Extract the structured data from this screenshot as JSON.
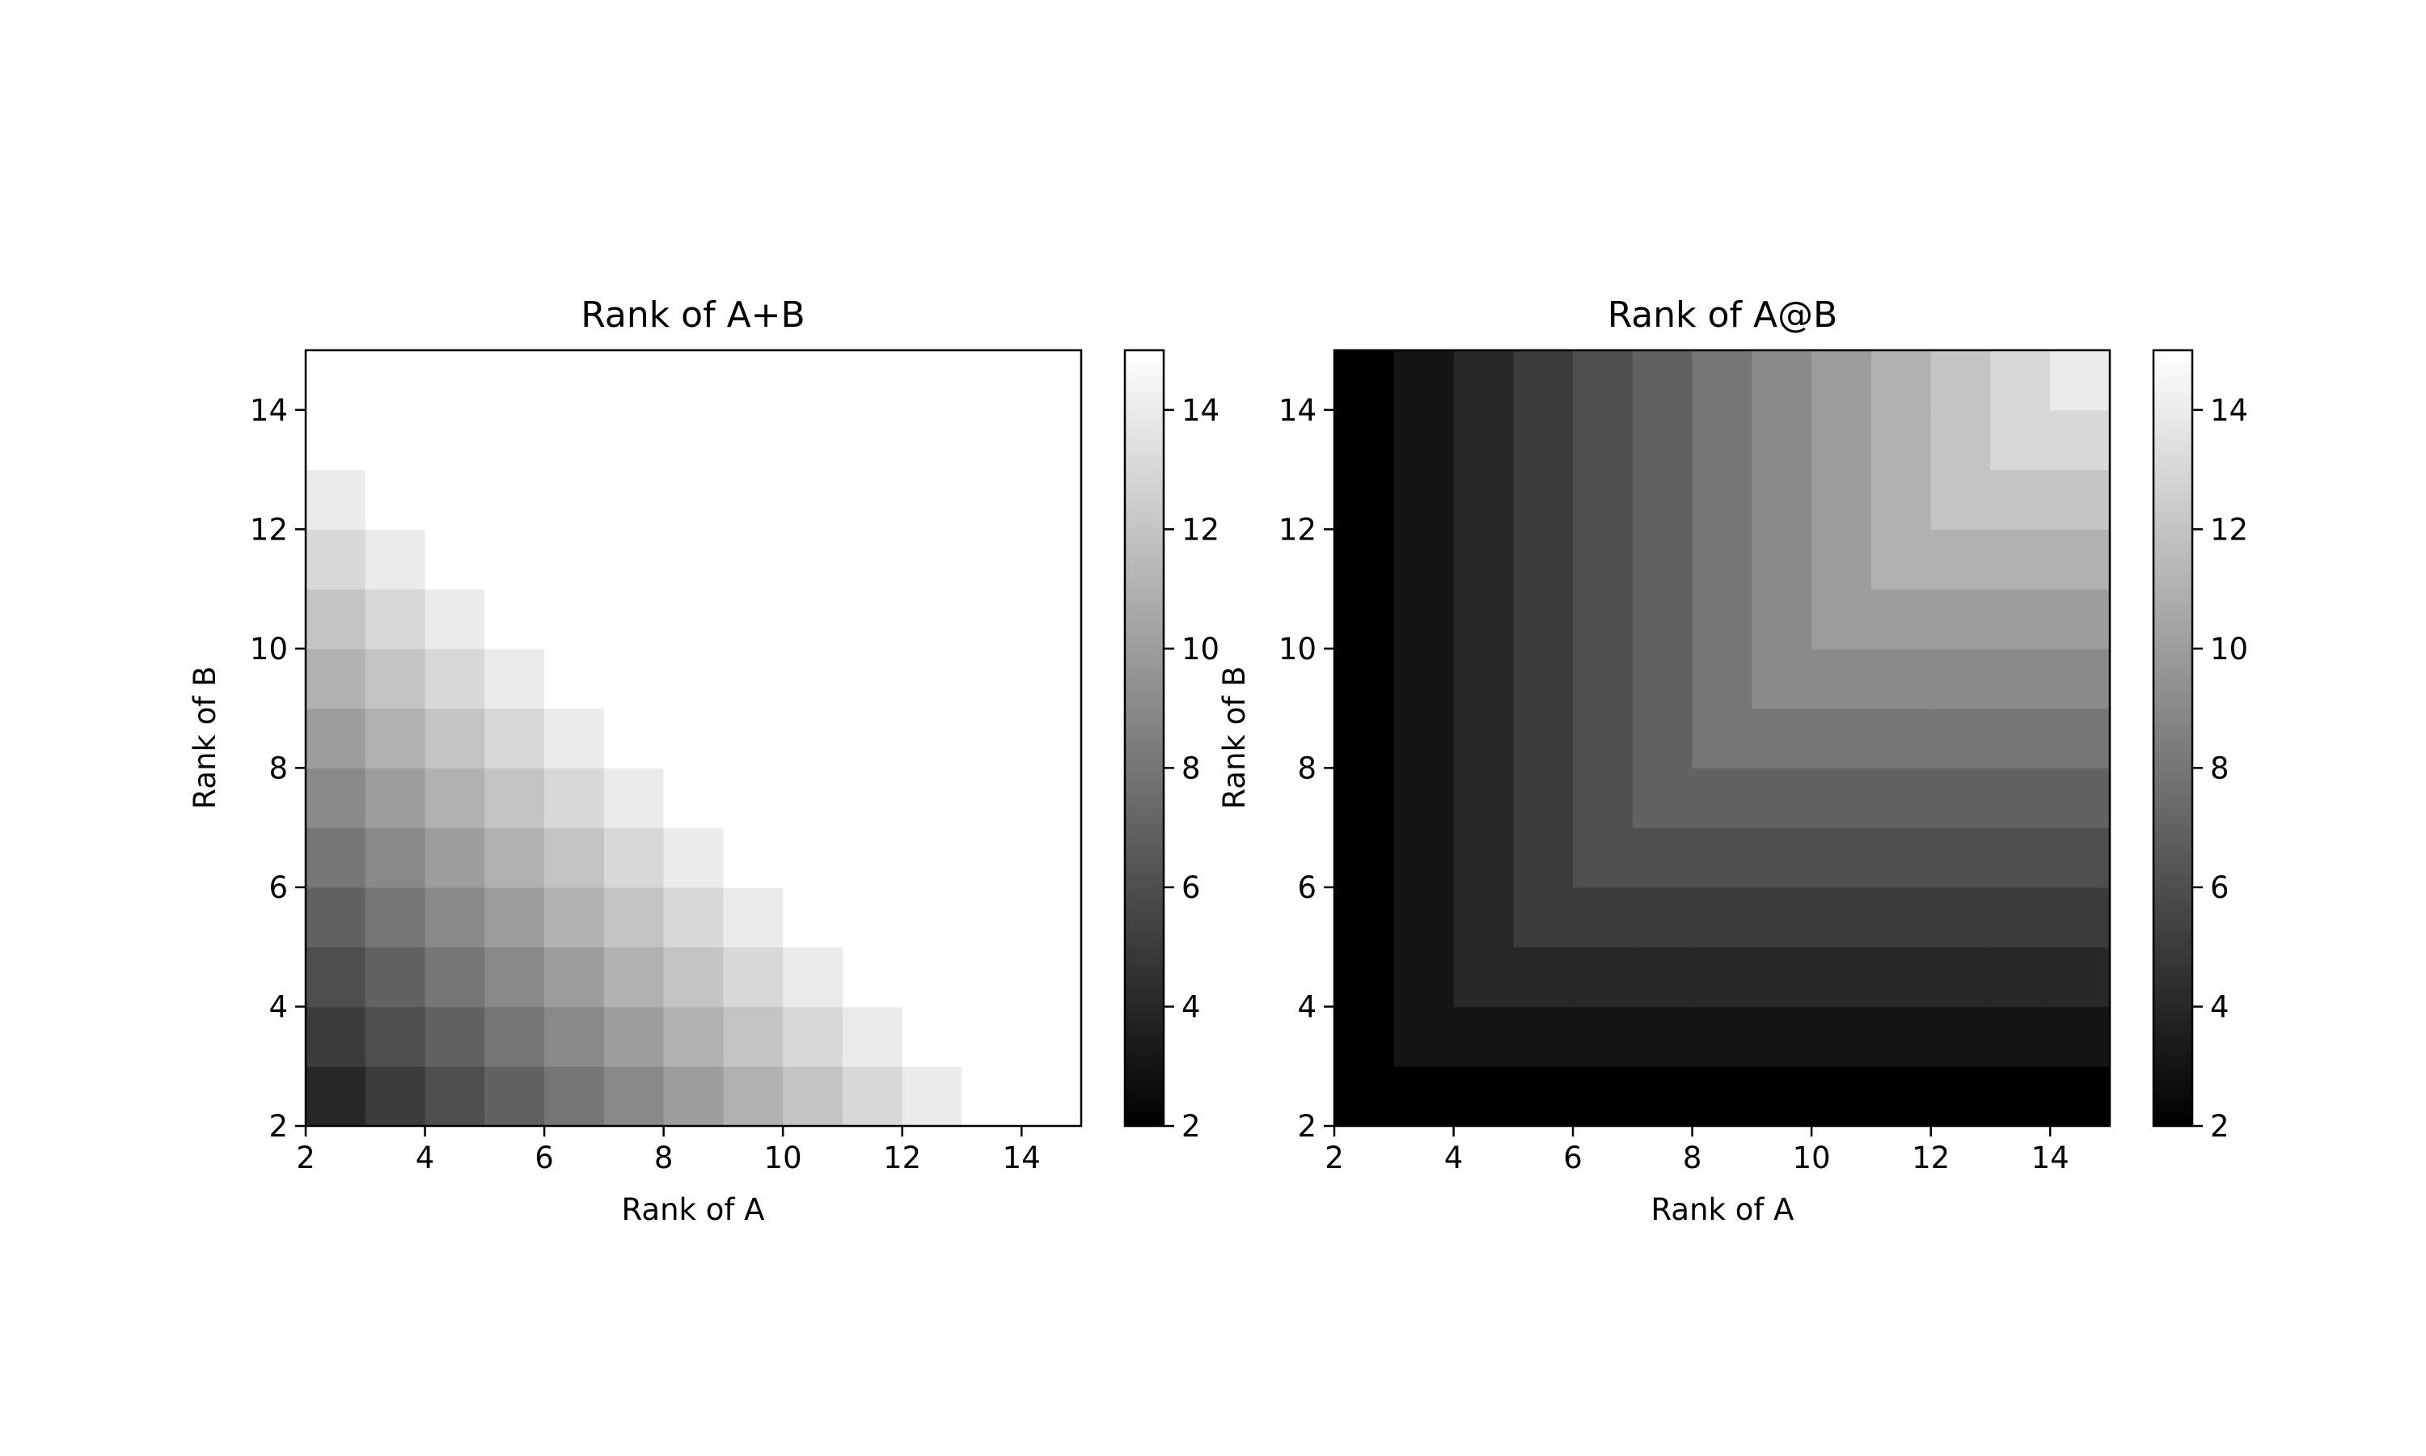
{
  "chart_data": [
    {
      "type": "heatmap",
      "title": "Rank of A+B",
      "xlabel": "Rank of A",
      "ylabel": "Rank of B",
      "x": [
        2,
        3,
        4,
        5,
        6,
        7,
        8,
        9,
        10,
        11,
        12,
        13,
        14
      ],
      "y": [
        2,
        3,
        4,
        5,
        6,
        7,
        8,
        9,
        10,
        11,
        12,
        13,
        14
      ],
      "xlim": [
        2,
        15
      ],
      "ylim": [
        2,
        15
      ],
      "xticks": [
        "2",
        "4",
        "6",
        "8",
        "10",
        "12",
        "14"
      ],
      "yticks": [
        "2",
        "4",
        "6",
        "8",
        "10",
        "12",
        "14"
      ],
      "values_rule": "min(rank_A + rank_B, 15)",
      "colormap": "gray",
      "colorbar": {
        "range": [
          2,
          15
        ],
        "ticks": [
          "2",
          "4",
          "6",
          "8",
          "10",
          "12",
          "14"
        ]
      }
    },
    {
      "type": "heatmap",
      "title": "Rank of A@B",
      "xlabel": "Rank of A",
      "ylabel": "Rank of B",
      "x": [
        2,
        3,
        4,
        5,
        6,
        7,
        8,
        9,
        10,
        11,
        12,
        13,
        14
      ],
      "y": [
        2,
        3,
        4,
        5,
        6,
        7,
        8,
        9,
        10,
        11,
        12,
        13,
        14
      ],
      "xlim": [
        2,
        15
      ],
      "ylim": [
        2,
        15
      ],
      "xticks": [
        "2",
        "4",
        "6",
        "8",
        "10",
        "12",
        "14"
      ],
      "yticks": [
        "2",
        "4",
        "6",
        "8",
        "10",
        "12",
        "14"
      ],
      "values_rule": "min(rank_A, rank_B)",
      "colormap": "gray",
      "colorbar": {
        "range": [
          2,
          15
        ],
        "ticks": [
          "2",
          "4",
          "6",
          "8",
          "10",
          "12",
          "14"
        ]
      }
    }
  ]
}
